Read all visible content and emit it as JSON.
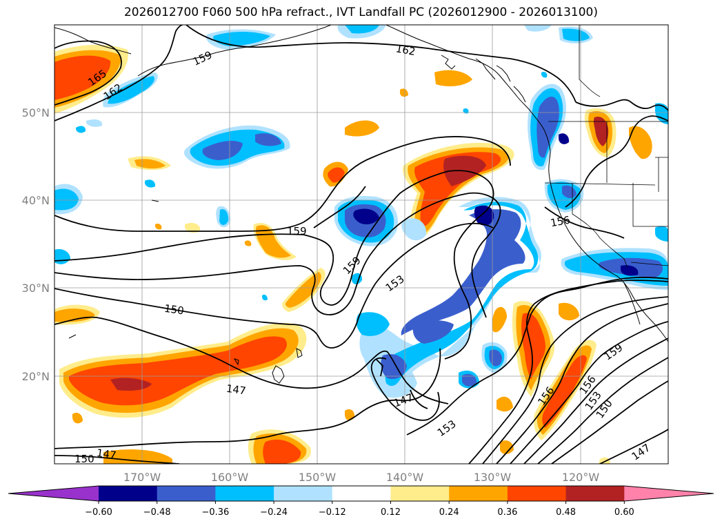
{
  "title": "2026012700 F060 500 hPa refract., IVT Landfall PC (2026012900 - 2026013100)",
  "lon_labels": [
    "170°W",
    "160°W",
    "150°W",
    "140°W",
    "130°W",
    "120°W"
  ],
  "lat_labels": [
    "50°N",
    "40°N",
    "30°N",
    "20°N"
  ],
  "colorbar": {
    "tick_labels": [
      "−0.60",
      "−0.48",
      "−0.36",
      "−0.24",
      "−0.12",
      "0.12",
      "0.24",
      "0.36",
      "0.48",
      "0.60"
    ],
    "colors": [
      "#9932cc",
      "#00008b",
      "#3a5fcd",
      "#00bfff",
      "#b0e2ff",
      "#ffffff",
      "#ffec8b",
      "#ffa500",
      "#ff4500",
      "#b22222",
      "#ff82ab"
    ]
  },
  "contour_labels": [
    "165",
    "162",
    "159",
    "162",
    "159",
    "159",
    "153",
    "156",
    "150",
    "147",
    "147",
    "153",
    "156",
    "156",
    "153",
    "150",
    "159",
    "147",
    "150",
    "147"
  ]
}
